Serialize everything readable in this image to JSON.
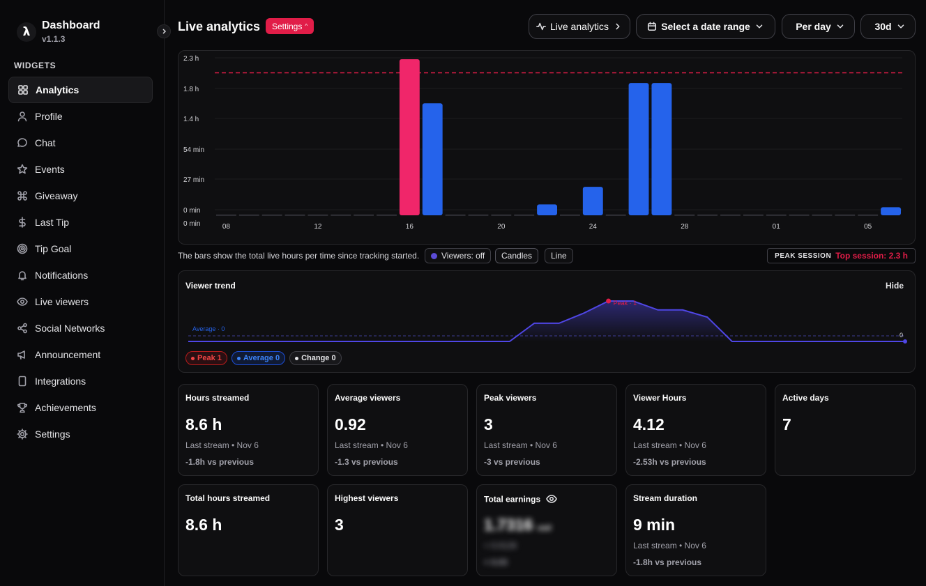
{
  "app": {
    "name": "Dashboard",
    "version": "v1.1.3",
    "logo_glyph": "λ"
  },
  "sidebar": {
    "section_label": "WIDGETS",
    "items": [
      {
        "label": "Analytics",
        "icon": "grid-icon",
        "active": true
      },
      {
        "label": "Profile",
        "icon": "user-icon"
      },
      {
        "label": "Chat",
        "icon": "chat-icon"
      },
      {
        "label": "Events",
        "icon": "star-icon"
      },
      {
        "label": "Giveaway",
        "icon": "command-icon"
      },
      {
        "label": "Last Tip",
        "icon": "dollar-icon"
      },
      {
        "label": "Tip Goal",
        "icon": "target-icon"
      },
      {
        "label": "Notifications",
        "icon": "bell-icon"
      },
      {
        "label": "Live viewers",
        "icon": "eye-icon"
      },
      {
        "label": "Social Networks",
        "icon": "share-icon"
      },
      {
        "label": "Announcement",
        "icon": "megaphone-icon"
      },
      {
        "label": "Integrations",
        "icon": "tablet-icon"
      },
      {
        "label": "Achievements",
        "icon": "trophy-icon"
      },
      {
        "label": "Settings",
        "icon": "gear-icon"
      }
    ]
  },
  "header": {
    "title": "Live analytics",
    "settings_badge": "Settings",
    "live_analytics_button": "Live analytics",
    "date_range_button": "Select a date range",
    "per_day_select": "Per day",
    "range_select": "30d"
  },
  "colors": {
    "accent": "#e11d48",
    "bar": "#2563eb",
    "peak_bar": "#f0266a",
    "line": "#4f46e5"
  },
  "chart_data": {
    "type": "bar",
    "y_tick_labels": [
      "0 min",
      "0 min",
      "27 min",
      "54 min",
      "1.4 h",
      "1.8 h",
      "2.3 h"
    ],
    "x_tick_labels": [
      "08",
      "12",
      "16",
      "20",
      "24",
      "28",
      "01",
      "05"
    ],
    "values_hours": [
      0,
      0,
      0,
      0,
      0,
      0,
      0,
      0,
      2.3,
      1.65,
      0,
      0,
      0,
      0,
      0.16,
      0,
      0.42,
      0,
      1.95,
      1.95,
      0,
      0,
      0,
      0,
      0,
      0,
      0,
      0,
      0,
      0.12
    ],
    "highlight_index": 8,
    "peak_line_hours": 2.1,
    "ylim_hours": [
      0,
      2.3
    ]
  },
  "caption": {
    "text": "The bars show the total live hours per time since tracking started.",
    "viewers_toggle": "Viewers: off",
    "candles_button": "Candles",
    "line_button": "Line",
    "peak_label": "PEAK SESSION",
    "peak_value": "Top session: 2.3 h"
  },
  "trend": {
    "title": "Viewer trend",
    "hide_button": "Hide",
    "average_label": "Average · 0",
    "peak_label": "Peak · 1",
    "end_label": "0",
    "values": [
      0,
      0,
      0,
      0,
      0,
      0,
      0,
      0,
      0,
      0,
      0,
      0,
      0,
      0,
      0.45,
      0.45,
      0.7,
      1,
      1,
      0.78,
      0.78,
      0.6,
      0,
      0,
      0,
      0,
      0,
      0,
      0,
      0
    ],
    "chips": {
      "peak": "Peak 1",
      "average": "Average 0",
      "change": "Change 0"
    }
  },
  "stats": [
    {
      "title": "Hours streamed",
      "value": "8.6 h",
      "sub": "Last stream • Nov 6",
      "delta": "-1.8h vs previous"
    },
    {
      "title": "Average viewers",
      "value": "0.92",
      "sub": "Last stream • Nov 6",
      "delta": "-1.3 vs previous"
    },
    {
      "title": "Peak viewers",
      "value": "3",
      "sub": "Last stream • Nov 6",
      "delta": "-3 vs previous"
    },
    {
      "title": "Viewer Hours",
      "value": "4.12",
      "sub": "Last stream • Nov 6",
      "delta": "-2.53h vs previous"
    },
    {
      "title": "Active days",
      "value": "7"
    },
    {
      "title": "Total hours streamed",
      "value": "8.6 h"
    },
    {
      "title": "Highest viewers",
      "value": "3"
    },
    {
      "title": "Total earnings",
      "value": "1.7316",
      "unit": "usd",
      "sub": "+ 0.0126",
      "delta": "+ 0.03"
    },
    {
      "title": "Stream duration",
      "value": "9 min",
      "sub": "Last stream • Nov 6",
      "delta": "-1.8h vs previous"
    }
  ]
}
